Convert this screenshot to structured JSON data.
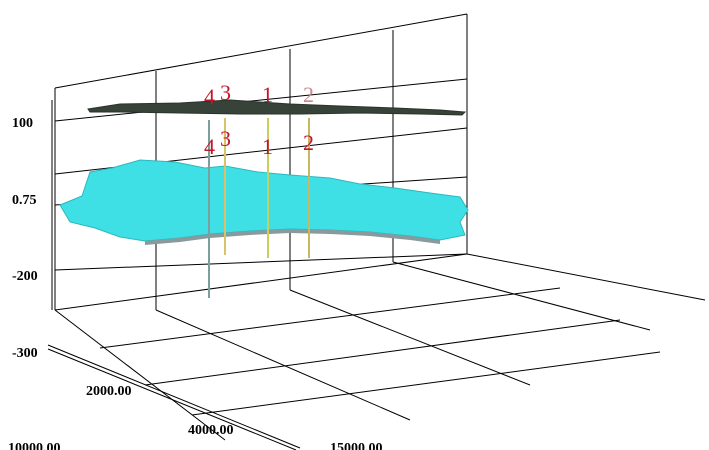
{
  "chart_data": {
    "type": "3d-surface",
    "title": "",
    "z_axis": {
      "tick_labels": [
        "100",
        "0.75",
        "-200",
        "-300"
      ]
    },
    "y_axis": {
      "tick_labels": [
        "2000.00",
        "4000.00"
      ]
    },
    "x_axis": {
      "tick_labels": [
        "10000.00",
        "15000.00"
      ]
    },
    "surfaces": [
      {
        "color": "#374238"
      },
      {
        "color": "#3ee0e6"
      }
    ],
    "wells": [
      {
        "label": "4"
      },
      {
        "label": "3"
      },
      {
        "label": "1"
      },
      {
        "label": "2"
      }
    ],
    "grid": true
  }
}
